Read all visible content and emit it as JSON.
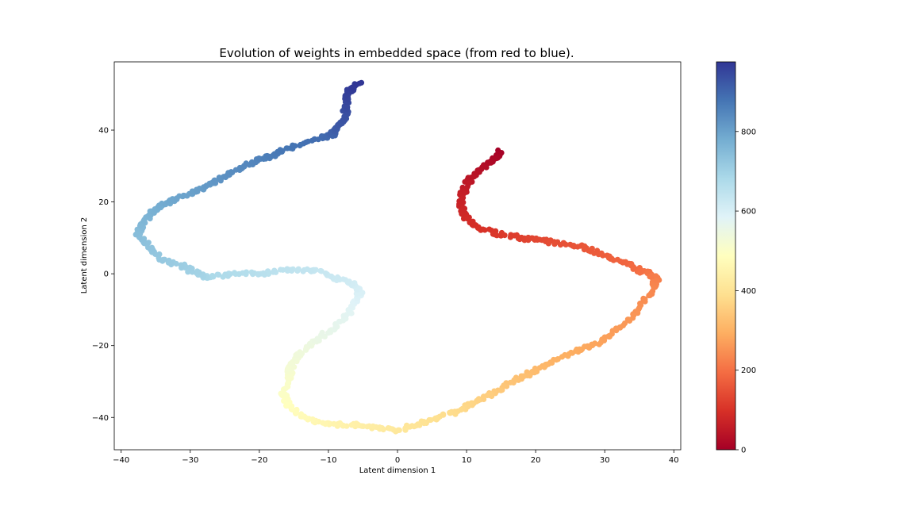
{
  "chart_data": {
    "type": "scatter",
    "title": "Evolution of weights in embedded space (from red to blue).",
    "xlabel": "Latent dimension 1",
    "ylabel": "Latent dimension 2",
    "xlim": [
      -41,
      41
    ],
    "ylim": [
      -49,
      59
    ],
    "xticks": [
      -40,
      -30,
      -20,
      -10,
      0,
      10,
      20,
      30,
      40
    ],
    "yticks": [
      -40,
      -20,
      0,
      20,
      40
    ],
    "grid": false,
    "colormap": "RdYlBu",
    "colorbar": {
      "range": [
        0,
        975
      ],
      "ticks": [
        0,
        200,
        400,
        600,
        800
      ]
    },
    "color_value_range": [
      0,
      975
    ],
    "trajectory_waypoints": {
      "x": [
        15,
        14,
        12.5,
        11,
        10,
        9.5,
        9.2,
        10,
        12,
        15,
        18,
        20,
        23,
        27,
        30,
        33,
        35,
        36.5,
        37.5,
        37,
        35.5,
        34,
        31,
        28,
        25,
        22,
        20,
        17.5,
        15,
        13,
        11,
        9,
        6,
        3,
        0,
        -3,
        -6,
        -9,
        -12,
        -14.5,
        -16,
        -16.5,
        -15.5,
        -15.5,
        -14,
        -12,
        -10,
        -7.5,
        -6,
        -5.5,
        -6.5,
        -9,
        -12,
        -16,
        -20,
        -24,
        -27.5,
        -28.5,
        -31,
        -34,
        -36,
        -37.5,
        -37,
        -35.5,
        -34,
        -32,
        -29,
        -27,
        -25,
        -22.5,
        -20,
        -18,
        -15.5,
        -11,
        -9.5,
        -9,
        -8,
        -7.5,
        -7.5,
        -7,
        -5.5
      ],
      "y": [
        34,
        32,
        30,
        27.5,
        25,
        22,
        18,
        15,
        12.5,
        11,
        10,
        9.5,
        8.5,
        7.5,
        5,
        3,
        1,
        0,
        -1,
        -4,
        -8,
        -12,
        -17,
        -20,
        -22,
        -25,
        -27,
        -29,
        -32,
        -34,
        -36,
        -38,
        -40,
        -42,
        -43.5,
        -43,
        -42,
        -42,
        -41,
        -39,
        -36,
        -33,
        -28,
        -26,
        -22,
        -19,
        -16,
        -12,
        -8,
        -5,
        -3,
        -1,
        1,
        1,
        0,
        0,
        -1,
        -0.5,
        2,
        4,
        8,
        11,
        14,
        17,
        19,
        21,
        23,
        25,
        27,
        29.5,
        32,
        33,
        35,
        38,
        38.5,
        40,
        42,
        45,
        48,
        51,
        53
      ]
    }
  }
}
